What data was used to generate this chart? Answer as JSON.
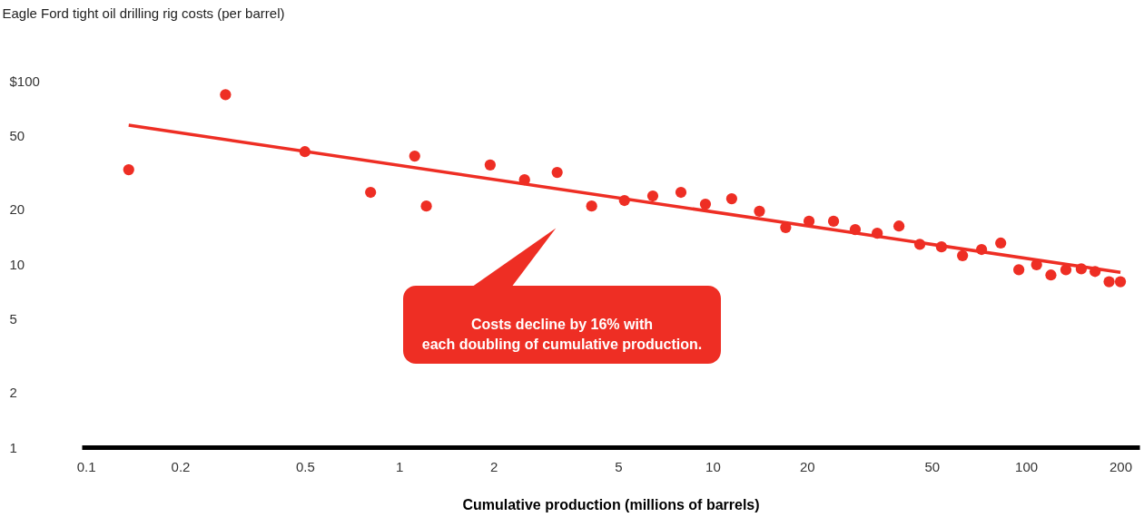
{
  "chart_data": {
    "type": "scatter",
    "ylabel": "Eagle Ford tight oil drilling rig costs (per barrel)",
    "xlabel": "Cumulative production (millions of barrels)",
    "log": "xy",
    "grid": false,
    "marker": "circle",
    "xlim": [
      0.097,
      230
    ],
    "ylim": [
      1,
      100
    ],
    "xticks": [
      0.1,
      0.2,
      0.5,
      1,
      2,
      5,
      10,
      20,
      50,
      100,
      200
    ],
    "yticks": [
      1,
      2,
      5,
      10,
      20,
      50,
      {
        "value": 100,
        "label": "$100"
      }
    ],
    "annotations": [
      "Costs decline by 16% with each doubling of cumulative production."
    ],
    "series": [
      {
        "color": "#ee2e24",
        "x": [
          0.137,
          0.279,
          0.5,
          0.81,
          1.12,
          1.22,
          1.95,
          2.51,
          3.19,
          4.11,
          5.23,
          6.44,
          7.92,
          9.48,
          11.5,
          14.1,
          17.1,
          20.3,
          24.3,
          28.5,
          33.5,
          39.3,
          45.8,
          53.7,
          62.7,
          72.1,
          83,
          94.8,
          108,
          120,
          134,
          150,
          166,
          184,
          200
        ],
        "values": [
          32.7,
          84,
          41,
          24.6,
          38.8,
          20.7,
          34.7,
          28.8,
          31.6,
          20.7,
          22.2,
          23.5,
          24.6,
          21.2,
          22.7,
          19.4,
          15.8,
          17.1,
          17.1,
          15.4,
          14.7,
          16.1,
          12.8,
          12.4,
          11.1,
          12.0,
          13.0,
          9.3,
          9.9,
          8.7,
          9.3,
          9.4,
          9.1,
          8.0,
          8.0
        ]
      },
      {
        "type": "line",
        "marker": "none",
        "color": "#ee2e24",
        "x": [
          0.137,
          200
        ],
        "values": [
          57.2,
          9.0
        ]
      }
    ]
  }
}
